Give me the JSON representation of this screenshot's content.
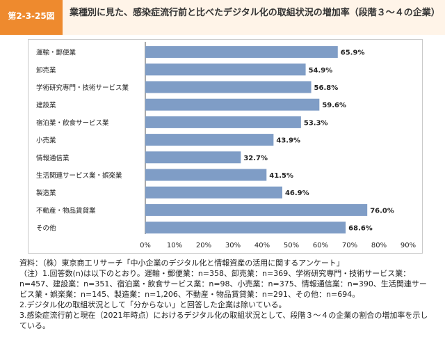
{
  "figure": {
    "label": "第2-3-25図",
    "title": "業種別に見た、感染症流行前と比べたデジタル化の取組状況の増加率（段階３～４の企業）"
  },
  "chart_data": {
    "type": "bar",
    "orientation": "horizontal",
    "categories": [
      "運輸・郵便業",
      "卸売業",
      "学術研究専門・技術サービス業",
      "建設業",
      "宿泊業・飲食サービス業",
      "小売業",
      "情報通信業",
      "生活関連サービス業・娯楽業",
      "製造業",
      "不動産・物品賃貸業",
      "その他"
    ],
    "values": [
      65.9,
      54.9,
      56.8,
      59.6,
      53.3,
      43.9,
      32.7,
      41.5,
      46.9,
      76.0,
      68.6
    ],
    "value_labels": [
      "65.9%",
      "54.9%",
      "56.8%",
      "59.6%",
      "53.3%",
      "43.9%",
      "32.7%",
      "41.5%",
      "46.9%",
      "76.0%",
      "68.6%"
    ],
    "x_ticks": [
      "0%",
      "10%",
      "20%",
      "30%",
      "40%",
      "50%",
      "60%",
      "70%",
      "80%",
      "90%"
    ],
    "xlim": [
      0,
      90
    ],
    "bar_color": "#7f9dc6",
    "grid": false
  },
  "notes": {
    "source": "資料：（株）東京商工リサーチ「中小企業のデジタル化と情報資産の活用に関するアンケート」",
    "note1": "（注）1.回答数(n)は以下のとおり。運輸・郵便業：n=358、卸売業：n=369、学術研究専門・技術サービス業：n=457、建設業：n=351、宿泊業・飲食サービス業：n=98、小売業：n=375、情報通信業：n=390、生活関連サービス業・娯楽業：n=145、製造業：n=1,206、不動産・物品賃貸業：n=291、その他：n=694。",
    "note2": "2.デジタル化の取組状況として「分からない」と回答した企業は除いている。",
    "note3": "3.感染症流行前と現在（2021年時点）におけるデジタル化の取組状況として、段階３～４の企業の割合の増加率を示している。"
  },
  "colors": {
    "accent": "#ee8a2e",
    "header_bg": "#fff4e8",
    "bar": "#7f9dc6"
  }
}
